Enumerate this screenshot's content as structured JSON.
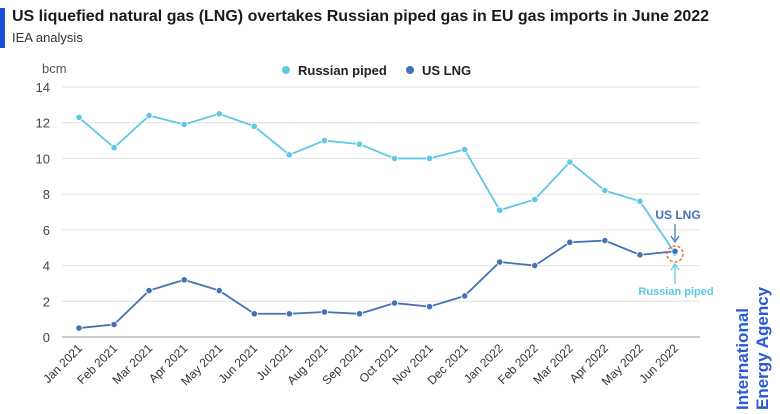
{
  "header": {
    "title": "US liquefied natural gas (LNG) overtakes Russian piped gas in EU gas imports in June 2022",
    "subtitle": "IEA analysis"
  },
  "logo": {
    "line1": "International",
    "line2": "Energy Agency"
  },
  "colors": {
    "russian": "#5ec8e5",
    "lng": "#4472b4",
    "accent": "#1a4fd8",
    "marker": "#e8733a"
  },
  "chart_data": {
    "type": "line",
    "ylabel": "bcm",
    "ylim": [
      0,
      14
    ],
    "yticks": [
      0,
      2,
      4,
      6,
      8,
      10,
      12,
      14
    ],
    "grid": true,
    "legend_position": "top-center",
    "categories": [
      "Jan 2021",
      "Feb 2021",
      "Mar 2021",
      "Apr 2021",
      "May 2021",
      "Jun 2021",
      "Jul 2021",
      "Aug 2021",
      "Sep 2021",
      "Oct 2021",
      "Nov 2021",
      "Dec 2021",
      "Jan 2022",
      "Feb 2022",
      "Mar 2022",
      "Apr 2022",
      "May 2022",
      "Jun 2022"
    ],
    "series": [
      {
        "name": "Russian piped",
        "values": [
          12.3,
          10.6,
          12.4,
          11.9,
          12.5,
          11.8,
          10.2,
          11.0,
          10.8,
          10.0,
          10.0,
          10.5,
          7.1,
          7.7,
          9.8,
          8.2,
          7.6,
          4.7
        ]
      },
      {
        "name": "US LNG",
        "values": [
          0.5,
          0.7,
          2.6,
          3.2,
          2.6,
          1.3,
          1.3,
          1.4,
          1.3,
          1.9,
          1.7,
          2.3,
          4.2,
          4.0,
          5.3,
          5.4,
          4.6,
          4.8
        ]
      }
    ],
    "annotations": [
      {
        "text": "US LNG",
        "target": "US LNG"
      },
      {
        "text": "Russian piped",
        "target": "Russian piped"
      }
    ]
  }
}
